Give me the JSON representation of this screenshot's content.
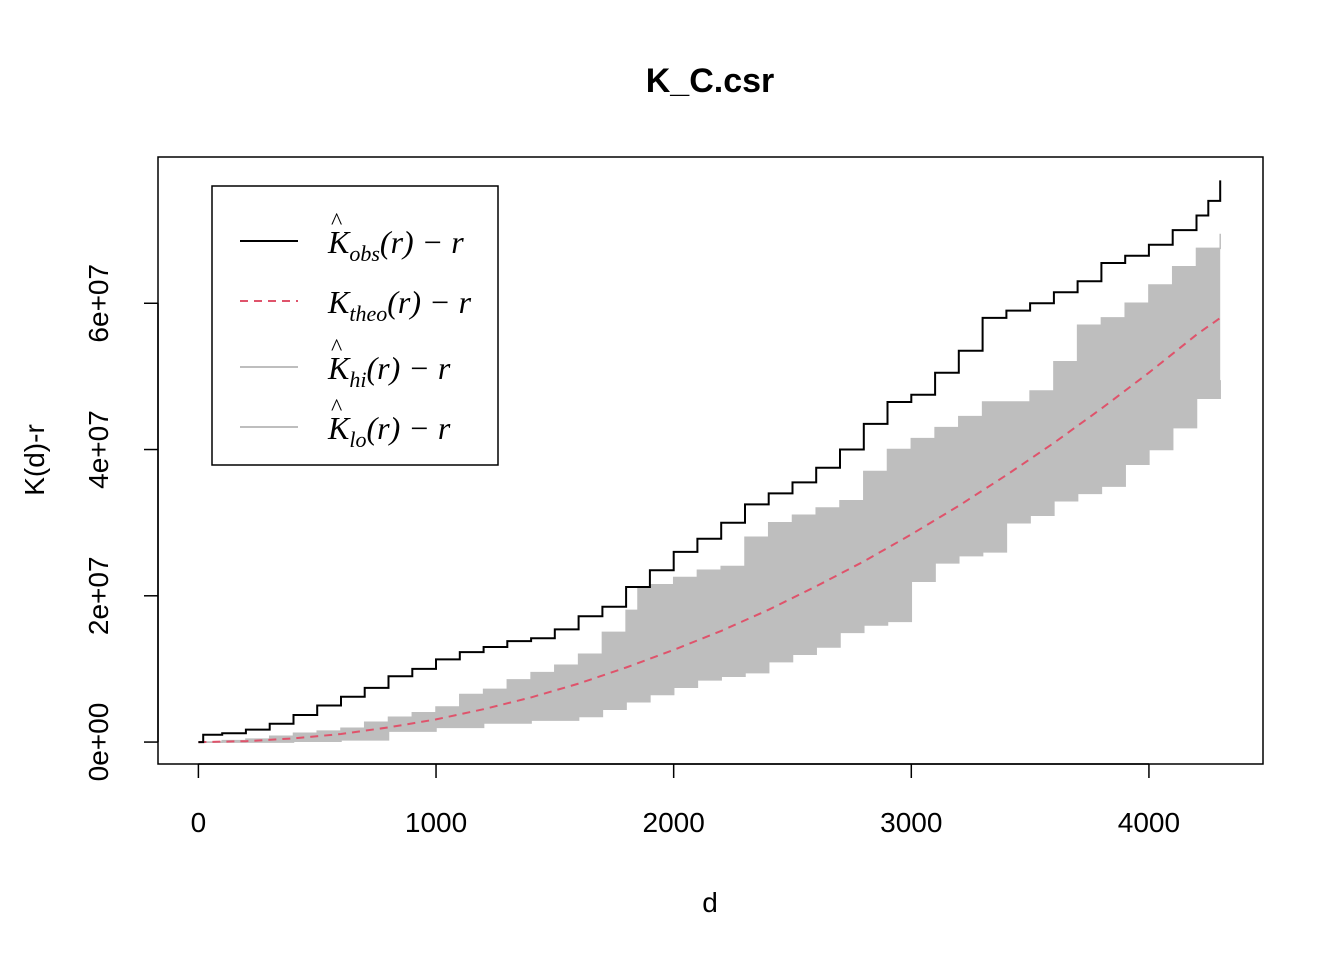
{
  "chart_data": {
    "type": "line",
    "title": "K_C.csr",
    "xlabel": "d",
    "ylabel": "K(d)-r",
    "xlim": [
      -170,
      4480
    ],
    "ylim": [
      -3000000,
      80000000
    ],
    "x_ticks": [
      0,
      1000,
      2000,
      3000,
      4000
    ],
    "x_tick_labels": [
      "0",
      "1000",
      "2000",
      "3000",
      "4000"
    ],
    "y_ticks": [
      0,
      20000000,
      40000000,
      60000000
    ],
    "y_tick_labels": [
      "0e+00",
      "2e+07",
      "4e+07",
      "6e+07"
    ],
    "grid": false,
    "legend_position": "top-left",
    "colors": {
      "observed": "#000000",
      "theoretical": "#DF536B",
      "envelope": "#BEBEBE"
    },
    "legend": [
      {
        "key": "obs",
        "base": "K",
        "hat": "^",
        "sub": "obs",
        "suffix": "(r) − r",
        "style": "solid",
        "color": "#000000"
      },
      {
        "key": "theo",
        "base": "K",
        "hat": "",
        "sub": "theo",
        "suffix": "(r) − r",
        "style": "dashed",
        "color": "#DF536B"
      },
      {
        "key": "hi",
        "base": "K",
        "hat": "^",
        "sub": "hi",
        "suffix": "(r) − r",
        "style": "solid",
        "color": "#BEBEBE"
      },
      {
        "key": "lo",
        "base": "K",
        "hat": "^",
        "sub": "lo",
        "suffix": "(r) − r",
        "style": "solid",
        "color": "#BEBEBE"
      }
    ],
    "series": [
      {
        "key": "obs",
        "x": [
          0,
          20,
          100,
          200,
          300,
          400,
          500,
          600,
          700,
          800,
          900,
          1000,
          1100,
          1200,
          1300,
          1400,
          1500,
          1600,
          1700,
          1800,
          1900,
          2000,
          2100,
          2200,
          2300,
          2400,
          2500,
          2600,
          2700,
          2800,
          2900,
          3000,
          3100,
          3200,
          3300,
          3400,
          3500,
          3600,
          3700,
          3800,
          3900,
          4000,
          4100,
          4200,
          4250,
          4300
        ],
        "values": [
          0,
          1000000,
          1200000,
          1700000,
          2500000,
          3700000,
          5000000,
          6200000,
          7400000,
          9000000,
          10000000,
          11300000,
          12300000,
          13000000,
          13800000,
          14200000,
          15400000,
          17200000,
          18500000,
          21200000,
          23500000,
          26000000,
          27800000,
          30000000,
          32500000,
          34000000,
          35500000,
          37500000,
          40000000,
          43500000,
          46500000,
          47500000,
          50500000,
          53500000,
          58000000,
          59000000,
          60000000,
          61500000,
          63000000,
          65500000,
          66500000,
          68000000,
          70000000,
          72000000,
          74000000,
          76800000
        ]
      },
      {
        "key": "theo",
        "x": [
          0,
          200,
          400,
          600,
          800,
          1000,
          1200,
          1400,
          1600,
          1800,
          2000,
          2200,
          2400,
          2600,
          2800,
          3000,
          3200,
          3400,
          3600,
          3800,
          4000,
          4200,
          4300
        ],
        "values": [
          0,
          120000,
          500000,
          1100000,
          2000000,
          3100000,
          4500000,
          6100000,
          8000000,
          10200000,
          12600000,
          15200000,
          18100000,
          21300000,
          24700000,
          28400000,
          32300000,
          36500000,
          40900000,
          45600000,
          50500000,
          55700000,
          58000000
        ]
      },
      {
        "key": "hi",
        "x": [
          0,
          100,
          200,
          300,
          400,
          500,
          600,
          700,
          800,
          900,
          1000,
          1100,
          1200,
          1300,
          1400,
          1500,
          1600,
          1700,
          1800,
          1850,
          1900,
          2000,
          2100,
          2200,
          2300,
          2400,
          2500,
          2600,
          2700,
          2800,
          2900,
          3000,
          3100,
          3200,
          3300,
          3400,
          3500,
          3600,
          3700,
          3800,
          3900,
          4000,
          4100,
          4200,
          4300
        ],
        "values": [
          0,
          200000,
          400000,
          800000,
          1200000,
          1500000,
          1900000,
          2700000,
          3400000,
          4000000,
          4800000,
          6500000,
          7200000,
          8500000,
          9500000,
          10500000,
          12000000,
          15000000,
          18000000,
          21000000,
          21500000,
          22500000,
          23500000,
          24000000,
          28000000,
          30000000,
          31000000,
          32000000,
          33000000,
          37000000,
          40000000,
          41500000,
          43000000,
          44500000,
          46500000,
          46500000,
          48000000,
          52000000,
          57000000,
          58000000,
          60000000,
          62500000,
          65000000,
          67500000,
          69500000
        ]
      },
      {
        "key": "lo",
        "x": [
          0,
          200,
          400,
          600,
          800,
          1000,
          1200,
          1400,
          1600,
          1700,
          1800,
          1900,
          2000,
          2100,
          2200,
          2300,
          2400,
          2500,
          2600,
          2700,
          2800,
          2900,
          3000,
          3100,
          3200,
          3300,
          3400,
          3500,
          3600,
          3700,
          3800,
          3900,
          4000,
          4100,
          4200,
          4300
        ],
        "values": [
          0,
          0,
          100000,
          300000,
          1500000,
          2000000,
          2600000,
          3000000,
          3500000,
          4500000,
          5500000,
          6500000,
          7500000,
          8500000,
          9000000,
          9500000,
          11000000,
          12000000,
          13000000,
          15000000,
          16000000,
          16500000,
          22000000,
          24500000,
          25500000,
          26000000,
          30000000,
          31000000,
          33000000,
          34000000,
          35000000,
          38000000,
          40000000,
          43000000,
          47000000,
          49500000
        ]
      }
    ]
  }
}
